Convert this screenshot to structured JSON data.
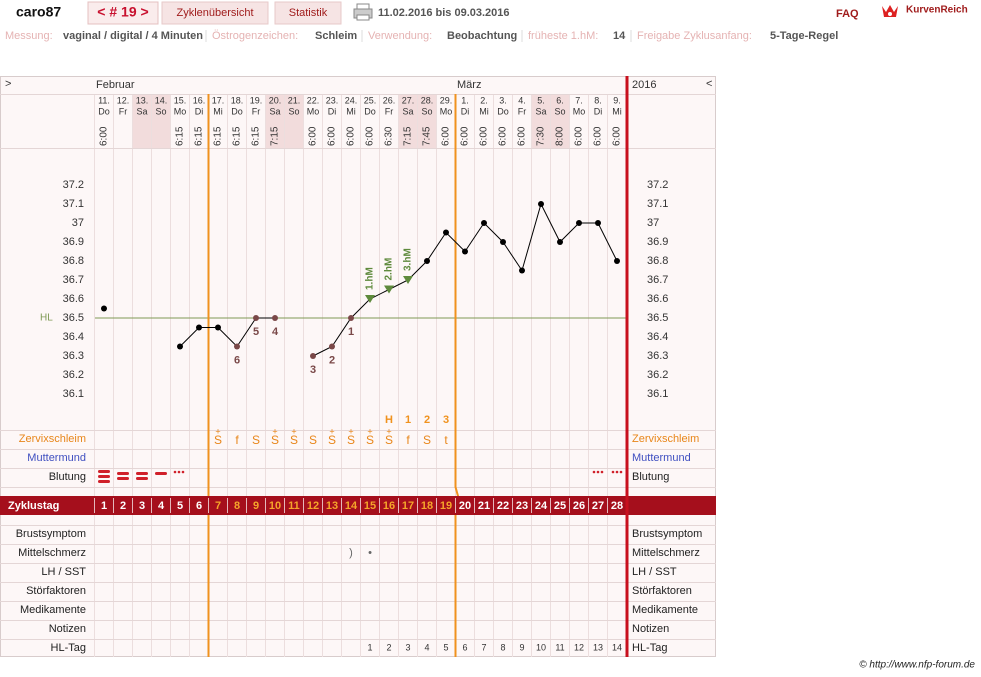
{
  "header": {
    "user": "caro87",
    "cycle": "< # 19 >",
    "tabs": [
      "Zyklenübersicht",
      "Statistik"
    ],
    "period": "11.02.2016 bis 09.03.2016",
    "faq": "FAQ",
    "logo": "KurvenReich"
  },
  "settings": [
    {
      "label": "Messung:",
      "value": "vaginal / digital / 4 Minuten"
    },
    {
      "label": "Östrogenzeichen:",
      "value": "Schleim"
    },
    {
      "label": "Verwendung:",
      "value": "Beobachtung"
    },
    {
      "label": "früheste 1.hM:",
      "value": "14"
    },
    {
      "label": "Freigabe Zyklusanfang:",
      "value": "5-Tage-Regel"
    }
  ],
  "chart_data": {
    "type": "line",
    "nav_next": ">",
    "nav_prev": "<",
    "year": "2016",
    "months": [
      "Februar",
      null,
      null,
      null,
      null,
      null,
      null,
      null,
      null,
      null,
      null,
      null,
      null,
      null,
      null,
      null,
      null,
      null,
      null,
      "März",
      null,
      null,
      null,
      null,
      null,
      null,
      null,
      null
    ],
    "categories": [
      "11.",
      "12.",
      "13.",
      "14.",
      "15.",
      "16.",
      "17.",
      "18.",
      "19.",
      "20.",
      "21.",
      "22.",
      "23.",
      "24.",
      "25.",
      "26.",
      "27.",
      "28.",
      "29.",
      "1.",
      "2.",
      "3.",
      "4.",
      "5.",
      "6.",
      "7.",
      "8.",
      "9."
    ],
    "weekdays": [
      "Do",
      "Fr",
      "Sa",
      "So",
      "Mo",
      "Di",
      "Mi",
      "Do",
      "Fr",
      "Sa",
      "So",
      "Mo",
      "Di",
      "Mi",
      "Do",
      "Fr",
      "Sa",
      "So",
      "Mo",
      "Di",
      "Mi",
      "Do",
      "Fr",
      "Sa",
      "So",
      "Mo",
      "Di",
      "Mi"
    ],
    "times": [
      "6:00",
      null,
      null,
      null,
      "6:15",
      "6:15",
      "6:15",
      "6:15",
      "6:15",
      "7:15",
      null,
      "6:00",
      "6:00",
      "6:00",
      "6:00",
      "6:30",
      "7:15",
      "7:45",
      "6:00",
      "6:00",
      "6:00",
      "6:00",
      "6:00",
      "7:30",
      "8:00",
      "6:00",
      "6:00",
      "6:00"
    ],
    "values": [
      36.55,
      null,
      null,
      null,
      36.35,
      36.45,
      36.45,
      36.35,
      36.5,
      36.5,
      null,
      36.3,
      36.35,
      36.5,
      36.6,
      36.65,
      36.7,
      36.8,
      36.95,
      36.85,
      37.0,
      36.9,
      36.75,
      37.1,
      36.9,
      37.0,
      37.0,
      36.8
    ],
    "color": "#000000",
    "ylim": [
      36.0,
      37.3
    ],
    "yticks": [
      36.1,
      36.2,
      36.3,
      36.4,
      36.5,
      36.6,
      36.7,
      36.8,
      36.9,
      37,
      37.1,
      37.2
    ],
    "hl_label": "HL",
    "hl_value": 36.5,
    "hl_color": "#7f9a55",
    "low_counts": [
      null,
      null,
      null,
      null,
      null,
      null,
      null,
      "6",
      "5",
      "4",
      null,
      "3",
      "2",
      "1",
      null,
      null,
      null,
      null,
      null,
      null,
      null,
      null,
      null,
      null,
      null,
      null,
      null,
      null
    ],
    "count_color": "#7a4848",
    "high_marks": [
      null,
      null,
      null,
      null,
      null,
      null,
      null,
      null,
      null,
      null,
      null,
      null,
      null,
      null,
      "1.hM",
      "2.hM",
      "3.hM",
      null,
      null,
      null,
      null,
      null,
      null,
      null,
      null,
      null,
      null,
      null
    ],
    "high_color": "#5e8a3c"
  },
  "rows": {
    "marker": [
      null,
      null,
      null,
      null,
      null,
      null,
      null,
      null,
      null,
      null,
      null,
      null,
      null,
      null,
      null,
      "H",
      "1",
      "2",
      "3",
      null,
      null,
      null,
      null,
      null,
      null,
      null,
      null,
      null
    ],
    "zervix_label": "Zervixschleim",
    "zervix": [
      null,
      null,
      null,
      null,
      null,
      null,
      "S",
      "f",
      "S",
      "S",
      "S",
      "S",
      "S",
      "S",
      "S",
      "S",
      "f",
      "S",
      "t",
      null,
      null,
      null,
      null,
      null,
      null,
      null,
      null,
      null
    ],
    "zervix_plus": [
      null,
      null,
      null,
      null,
      null,
      null,
      "+",
      null,
      null,
      "+",
      "+",
      null,
      "+",
      "+",
      "+",
      "+",
      null,
      null,
      null,
      null,
      null,
      null,
      null,
      null,
      null,
      null,
      null,
      null
    ],
    "muttermund_label": "Muttermund",
    "blutung_label": "Blutung",
    "zyklustag_label": "Zyklustag",
    "zyklustag": [
      1,
      2,
      3,
      4,
      5,
      6,
      7,
      8,
      9,
      10,
      11,
      12,
      13,
      14,
      15,
      16,
      17,
      18,
      19,
      20,
      21,
      22,
      23,
      24,
      25,
      26,
      27,
      28
    ],
    "brust_label": "Brustsymptom",
    "mittel_label": "Mittelschmerz",
    "mittel": [
      null,
      null,
      null,
      null,
      null,
      null,
      null,
      null,
      null,
      null,
      null,
      null,
      null,
      ")",
      "•",
      null,
      null,
      null,
      null,
      null,
      null,
      null,
      null,
      null,
      null,
      null,
      null,
      null
    ],
    "lh_label": "LH / SST",
    "stoer_label": "Störfaktoren",
    "medi_label": "Medikamente",
    "notiz_label": "Notizen",
    "hltag_label": "HL-Tag",
    "hltag": [
      null,
      null,
      null,
      null,
      null,
      null,
      null,
      null,
      null,
      null,
      null,
      null,
      null,
      null,
      1,
      2,
      3,
      4,
      5,
      6,
      7,
      8,
      9,
      10,
      11,
      12,
      13,
      14
    ]
  },
  "footer": "© http://www.nfp-forum.de"
}
